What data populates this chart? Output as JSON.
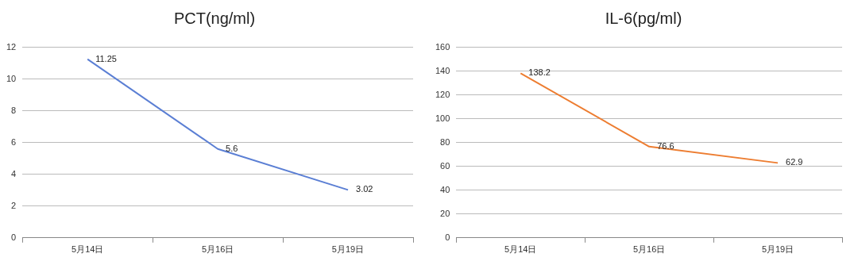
{
  "chart_data": [
    {
      "type": "line",
      "title": "PCT(ng/ml)",
      "categories": [
        "5月14日",
        "5月16日",
        "5月19日"
      ],
      "series": [
        {
          "color": "#5b7fd4",
          "values": [
            11.25,
            5.6,
            3.02
          ]
        }
      ],
      "ylim": [
        0,
        12
      ],
      "yticks": [
        0,
        2,
        4,
        6,
        8,
        10,
        12
      ],
      "grid": "y",
      "data_labels": true,
      "marker": "none",
      "line_style": "solid",
      "legend": false
    },
    {
      "type": "line",
      "title": "IL-6(pg/ml)",
      "categories": [
        "5月14日",
        "5月16日",
        "5月19日"
      ],
      "series": [
        {
          "color": "#ed7d31",
          "values": [
            138.2,
            76.6,
            62.9
          ]
        }
      ],
      "ylim": [
        0,
        160
      ],
      "yticks": [
        0,
        20,
        40,
        60,
        80,
        100,
        120,
        140,
        160
      ],
      "grid": "y",
      "data_labels": true,
      "marker": "none",
      "line_style": "solid",
      "legend": false
    }
  ]
}
